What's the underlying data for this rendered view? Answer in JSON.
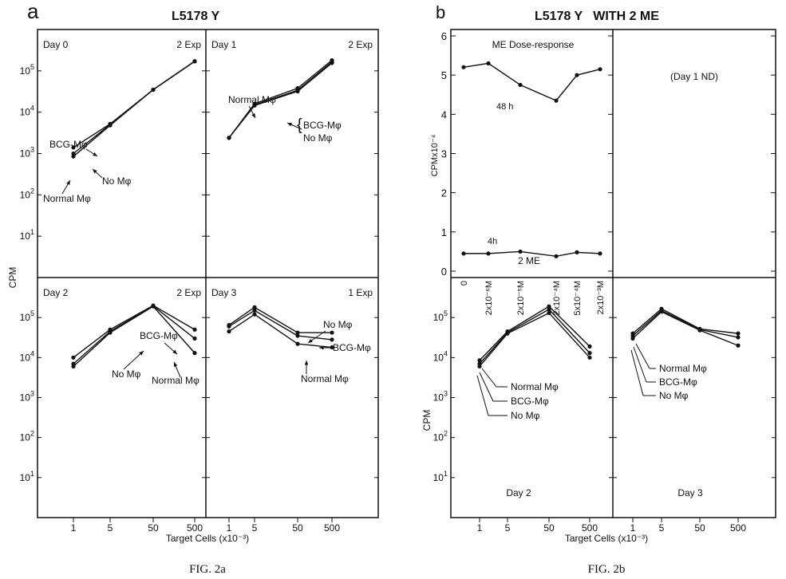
{
  "figure": {
    "panel_a": {
      "letter": "a",
      "title": "L5178 Y",
      "caption": "FIG. 2a"
    },
    "panel_b": {
      "letter": "b",
      "title": "L5178 Y   WITH 2 ME",
      "caption": "FIG. 2b"
    },
    "ylabel": "CPM",
    "xlabel": "Target Cells (x10⁻³)"
  },
  "chart_data": [
    {
      "type": "line",
      "panel": "a",
      "title": "Day 0",
      "note": "2 Exp",
      "yscale": "log",
      "ylim": [
        1,
        1000000
      ],
      "x_ticks": [
        "1",
        "5",
        "50",
        "500"
      ],
      "x": [
        1,
        5,
        50,
        500
      ],
      "series": [
        {
          "name": "BCG-Mφ",
          "values": [
            1400,
            5200,
            35000,
            170000
          ]
        },
        {
          "name": "No Mφ",
          "values": [
            1000,
            5000,
            35000,
            170000
          ]
        },
        {
          "name": "Normal Mφ",
          "values": [
            850,
            4800,
            35000,
            170000
          ]
        }
      ]
    },
    {
      "type": "line",
      "panel": "a",
      "title": "Day 1",
      "note": "2 Exp",
      "yscale": "log",
      "ylim": [
        1,
        1000000
      ],
      "x_ticks": [
        "1",
        "5",
        "50",
        "500"
      ],
      "x": [
        1,
        5,
        50,
        500
      ],
      "series": [
        {
          "name": "Normal Mφ",
          "values": [
            2400,
            16000,
            38000,
            180000
          ]
        },
        {
          "name": "BCG-Mφ",
          "values": [
            2400,
            15000,
            34000,
            165000
          ]
        },
        {
          "name": "No Mφ",
          "values": [
            2400,
            14500,
            32000,
            155000
          ]
        }
      ]
    },
    {
      "type": "line",
      "panel": "a",
      "title": "Day 2",
      "note": "2 Exp",
      "yscale": "log",
      "ylim": [
        1,
        1000000
      ],
      "x_ticks": [
        "1",
        "5",
        "50",
        "500"
      ],
      "x": [
        1,
        5,
        50,
        500
      ],
      "series": [
        {
          "name": "BCG-Mφ",
          "values": [
            10000,
            50000,
            200000,
            50000
          ]
        },
        {
          "name": "No Mφ",
          "values": [
            7000,
            45000,
            195000,
            30000
          ]
        },
        {
          "name": "Normal Mφ",
          "values": [
            6000,
            42000,
            190000,
            13000
          ]
        }
      ]
    },
    {
      "type": "line",
      "panel": "a",
      "title": "Day 3",
      "note": "1 Exp",
      "yscale": "log",
      "ylim": [
        1,
        1000000
      ],
      "x_ticks": [
        "1",
        "5",
        "50",
        "500"
      ],
      "x": [
        1,
        5,
        50,
        500
      ],
      "series": [
        {
          "name": "No Mφ",
          "values": [
            65000,
            180000,
            42000,
            42000
          ]
        },
        {
          "name": "BCG-Mφ",
          "values": [
            60000,
            150000,
            35000,
            28000
          ]
        },
        {
          "name": "Normal Mφ",
          "values": [
            45000,
            120000,
            22000,
            18000
          ]
        }
      ]
    },
    {
      "type": "line",
      "panel": "b",
      "title": "ME Dose-response",
      "ylabel": "CPMx10⁻⁴",
      "ylim": [
        0,
        6
      ],
      "y_ticks": [
        "0",
        "1",
        "2",
        "3",
        "4",
        "5",
        "6"
      ],
      "x_ticks": [
        "0",
        "2x10⁻⁶M",
        "2x10⁻⁵M",
        "2x10⁻⁴M",
        "5x10⁻⁴M",
        "2x10⁻³M"
      ],
      "note": "(Day 1 ND)",
      "series_label": "2 ME",
      "series": [
        {
          "name": "48 h",
          "values": [
            5.2,
            5.3,
            4.75,
            4.35,
            5.0,
            5.15
          ]
        },
        {
          "name": "4h",
          "values": [
            0.45,
            0.45,
            0.5,
            0.38,
            0.48,
            0.45
          ]
        }
      ]
    },
    {
      "type": "line",
      "panel": "b",
      "title": "Day 2",
      "yscale": "log",
      "ylim": [
        1,
        1000000
      ],
      "x_ticks": [
        "1",
        "5",
        "50",
        "500"
      ],
      "x": [
        1,
        5,
        50,
        500
      ],
      "series": [
        {
          "name": "Normal Mφ",
          "values": [
            8500,
            45000,
            190000,
            19000
          ]
        },
        {
          "name": "BCG-Mφ",
          "values": [
            7000,
            42000,
            160000,
            13000
          ]
        },
        {
          "name": "No Mφ",
          "values": [
            6000,
            40000,
            130000,
            10000
          ]
        }
      ]
    },
    {
      "type": "line",
      "panel": "b",
      "title": "Day 3",
      "yscale": "log",
      "ylim": [
        1,
        1000000
      ],
      "x_ticks": [
        "1",
        "5",
        "50",
        "500"
      ],
      "x": [
        1,
        5,
        50,
        500
      ],
      "series": [
        {
          "name": "Normal Mφ",
          "values": [
            40000,
            165000,
            52000,
            40000
          ]
        },
        {
          "name": "BCG-Mφ",
          "values": [
            35000,
            150000,
            50000,
            32000
          ]
        },
        {
          "name": "No Mφ",
          "values": [
            30000,
            140000,
            48000,
            20000
          ]
        }
      ]
    }
  ]
}
